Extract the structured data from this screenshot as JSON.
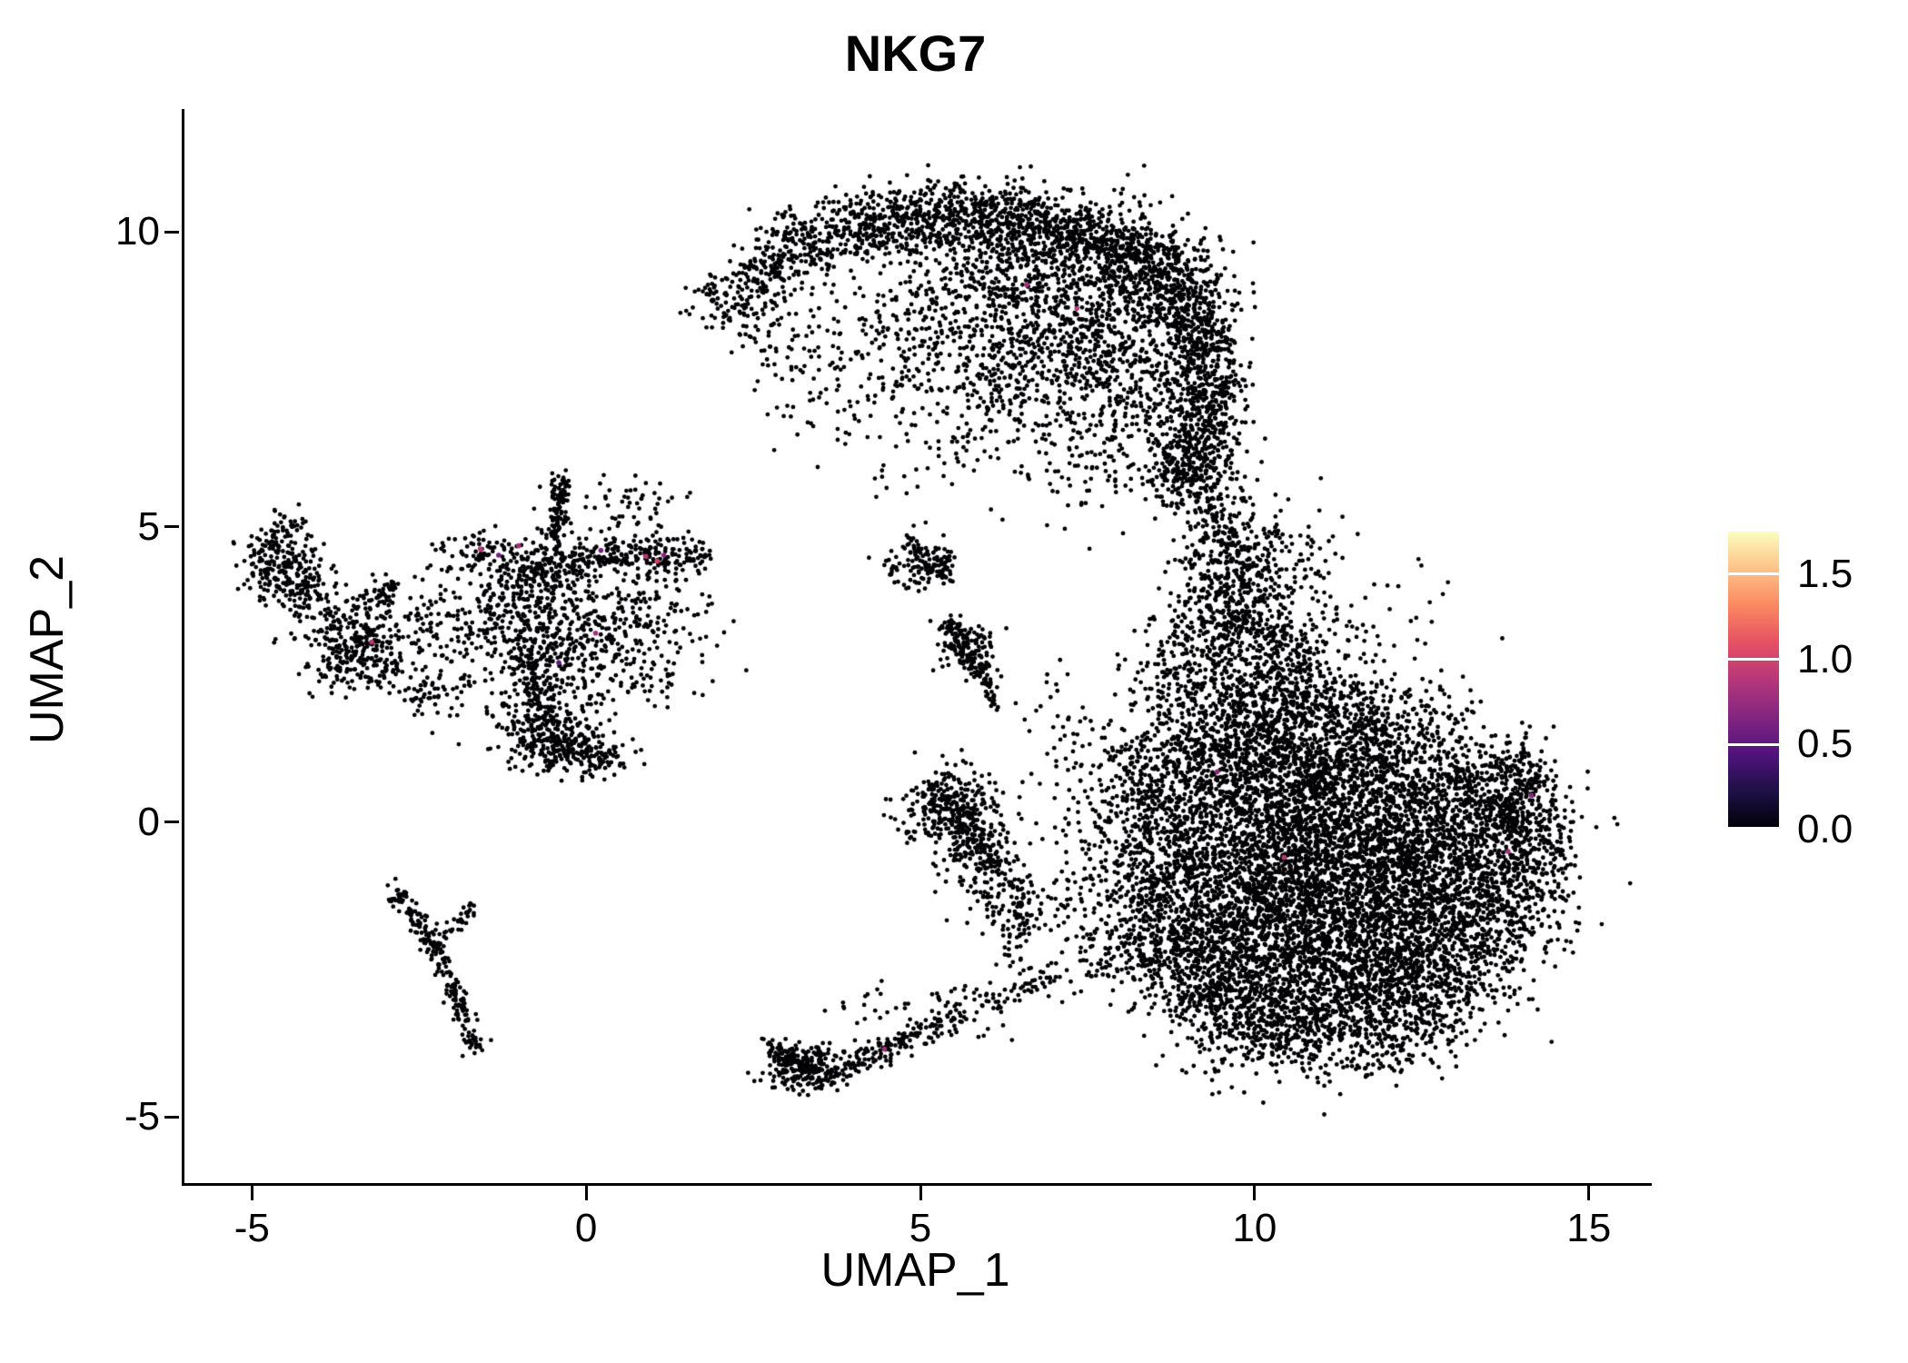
{
  "chart_data": {
    "type": "scatter",
    "title": "NKG7",
    "xlabel": "UMAP_1",
    "ylabel": "UMAP_2",
    "xlim": [
      -6.05,
      15.9
    ],
    "ylim": [
      -6.12,
      12.08
    ],
    "xticks": [
      -5,
      0,
      5,
      10,
      15
    ],
    "yticks": [
      10,
      5,
      0,
      -5
    ],
    "grid": false,
    "legend_position": "right",
    "point_color": "#000004",
    "colorbar": {
      "range": [
        0,
        1.75
      ],
      "ticks": [
        0,
        0.5,
        1.0,
        1.5
      ],
      "tick_labels": [
        "0.0",
        "0.5",
        "1.0",
        "1.5"
      ],
      "colors": [
        "#000004",
        "#1C1044",
        "#4F127B",
        "#812581",
        "#B5367A",
        "#E55064",
        "#FB8761",
        "#FEC287",
        "#FCFDBF"
      ]
    },
    "clusters": {
      "blobs": [
        [
          2.1,
          8.85,
          0.28,
          0.25,
          90
        ],
        [
          2.7,
          9.35,
          0.3,
          0.28,
          130
        ],
        [
          3.4,
          9.8,
          0.35,
          0.3,
          180
        ],
        [
          4.3,
          10.1,
          0.4,
          0.3,
          220
        ],
        [
          5.3,
          10.25,
          0.45,
          0.3,
          250
        ],
        [
          6.3,
          10.2,
          0.45,
          0.3,
          250
        ],
        [
          7.2,
          10.0,
          0.4,
          0.3,
          230
        ],
        [
          8.0,
          9.7,
          0.4,
          0.3,
          220
        ],
        [
          8.6,
          9.2,
          0.35,
          0.35,
          200
        ],
        [
          9.0,
          8.6,
          0.3,
          0.4,
          190
        ],
        [
          9.25,
          7.9,
          0.28,
          0.45,
          190
        ],
        [
          9.3,
          7.1,
          0.28,
          0.45,
          180
        ],
        [
          9.1,
          6.4,
          0.3,
          0.4,
          170
        ],
        [
          8.9,
          5.9,
          0.3,
          0.3,
          120
        ],
        [
          7.5,
          8.6,
          1.0,
          0.9,
          800
        ],
        [
          6.3,
          9.3,
          0.8,
          0.5,
          300
        ],
        [
          6.5,
          7.6,
          0.8,
          0.7,
          260
        ],
        [
          8.3,
          7.4,
          0.5,
          0.8,
          220
        ],
        [
          5.2,
          8.6,
          0.7,
          0.6,
          160
        ],
        [
          4.4,
          8.0,
          0.8,
          0.7,
          120
        ],
        [
          3.3,
          7.6,
          0.5,
          0.6,
          45
        ],
        [
          5.6,
          6.7,
          0.9,
          0.6,
          70
        ],
        [
          7.5,
          6.2,
          0.6,
          0.5,
          90
        ],
        [
          4.7,
          5.9,
          0.5,
          0.4,
          18
        ],
        [
          2.6,
          8.3,
          0.3,
          0.3,
          30
        ],
        [
          9.3,
          5.4,
          0.3,
          0.4,
          110
        ],
        [
          9.55,
          4.6,
          0.35,
          0.4,
          150
        ],
        [
          9.8,
          3.8,
          0.45,
          0.45,
          220
        ],
        [
          10.0,
          3.0,
          0.5,
          0.45,
          260
        ],
        [
          9.2,
          3.3,
          0.35,
          0.6,
          120
        ],
        [
          10.4,
          4.6,
          0.5,
          0.45,
          70
        ],
        [
          11.3,
          3.1,
          0.8,
          0.7,
          80
        ],
        [
          8.8,
          2.4,
          0.4,
          0.5,
          130
        ],
        [
          10.1,
          1.9,
          0.7,
          0.5,
          380
        ],
        [
          9.4,
          1.0,
          0.6,
          0.7,
          380
        ],
        [
          8.6,
          0.9,
          0.4,
          0.5,
          180
        ],
        [
          10.5,
          0.9,
          0.8,
          0.6,
          480
        ],
        [
          11.6,
          1.0,
          0.8,
          0.55,
          420
        ],
        [
          12.6,
          0.6,
          0.7,
          0.5,
          320
        ],
        [
          13.5,
          0.3,
          0.5,
          0.45,
          240
        ],
        [
          14.05,
          0.1,
          0.3,
          0.45,
          150
        ],
        [
          9.8,
          -0.2,
          0.8,
          0.7,
          550
        ],
        [
          11.0,
          -0.3,
          0.9,
          0.7,
          700
        ],
        [
          12.2,
          -0.5,
          0.9,
          0.7,
          600
        ],
        [
          13.2,
          -0.8,
          0.7,
          0.6,
          400
        ],
        [
          10.3,
          -1.4,
          0.9,
          0.7,
          650
        ],
        [
          11.5,
          -1.6,
          0.9,
          0.7,
          650
        ],
        [
          12.6,
          -1.8,
          0.8,
          0.6,
          450
        ],
        [
          9.4,
          -1.8,
          0.6,
          0.7,
          300
        ],
        [
          10.6,
          -2.6,
          0.9,
          0.6,
          500
        ],
        [
          11.8,
          -2.7,
          0.8,
          0.55,
          400
        ],
        [
          12.8,
          -2.7,
          0.6,
          0.5,
          220
        ],
        [
          9.6,
          -3.0,
          0.6,
          0.5,
          250
        ],
        [
          10.3,
          -3.6,
          0.6,
          0.4,
          220
        ],
        [
          11.3,
          -3.6,
          0.6,
          0.35,
          180
        ],
        [
          12.2,
          -3.5,
          0.5,
          0.35,
          120
        ],
        [
          8.9,
          -2.4,
          0.45,
          0.6,
          160
        ],
        [
          8.4,
          -1.5,
          0.4,
          0.6,
          120
        ],
        [
          8.3,
          -0.3,
          0.4,
          0.7,
          130
        ],
        [
          8.9,
          -0.9,
          0.5,
          0.8,
          250
        ],
        [
          13.8,
          -1.4,
          0.4,
          0.5,
          130
        ],
        [
          14.25,
          -0.5,
          0.25,
          0.5,
          80
        ],
        [
          13.9,
          0.9,
          0.3,
          0.3,
          60
        ],
        [
          12.0,
          1.7,
          0.6,
          0.35,
          140
        ],
        [
          10.9,
          2.2,
          0.5,
          0.4,
          130
        ],
        [
          7.8,
          0.3,
          0.5,
          0.7,
          90
        ],
        [
          7.4,
          -0.9,
          0.6,
          0.6,
          80
        ],
        [
          7.9,
          -1.9,
          0.5,
          0.45,
          90
        ],
        [
          7.1,
          1.6,
          0.5,
          0.5,
          45
        ],
        [
          5.6,
          0.0,
          0.3,
          0.4,
          280
        ],
        [
          5.9,
          -0.7,
          0.25,
          0.35,
          110
        ],
        [
          5.25,
          0.45,
          0.2,
          0.2,
          60
        ],
        [
          6.3,
          -1.4,
          0.3,
          0.4,
          70
        ],
        [
          4.9,
          0.1,
          0.25,
          0.3,
          40
        ],
        [
          5.15,
          4.4,
          0.2,
          0.2,
          40
        ],
        [
          4.6,
          4.35,
          0.15,
          0.15,
          25
        ],
        [
          5.7,
          2.95,
          0.22,
          0.25,
          70
        ],
        [
          -4.6,
          4.45,
          0.3,
          0.3,
          170
        ],
        [
          -4.85,
          4.2,
          0.15,
          0.2,
          40
        ],
        [
          -4.35,
          3.95,
          0.2,
          0.2,
          50
        ],
        [
          -4.5,
          5.0,
          0.15,
          0.15,
          20
        ],
        [
          -3.55,
          3.1,
          0.4,
          0.38,
          260
        ],
        [
          -3.15,
          2.75,
          0.25,
          0.3,
          70
        ],
        [
          -3.85,
          2.65,
          0.2,
          0.2,
          30
        ],
        [
          -4.0,
          3.9,
          0.3,
          0.3,
          25
        ],
        [
          -0.65,
          4.3,
          0.3,
          0.28,
          160
        ],
        [
          1.15,
          4.5,
          0.3,
          0.22,
          90
        ],
        [
          0.2,
          5.1,
          0.45,
          0.35,
          55
        ],
        [
          0.8,
          5.5,
          0.3,
          0.2,
          18
        ],
        [
          -1.5,
          4.55,
          0.3,
          0.25,
          60
        ],
        [
          -1.1,
          3.9,
          0.35,
          0.35,
          70
        ],
        [
          -1.6,
          3.3,
          0.35,
          0.4,
          90
        ],
        [
          -0.8,
          3.3,
          0.45,
          0.45,
          160
        ],
        [
          0.0,
          3.4,
          0.45,
          0.45,
          120
        ],
        [
          0.7,
          3.7,
          0.35,
          0.35,
          60
        ],
        [
          1.3,
          3.3,
          0.3,
          0.4,
          25
        ],
        [
          0.4,
          2.7,
          0.4,
          0.4,
          70
        ],
        [
          -0.3,
          2.6,
          0.35,
          0.35,
          90
        ],
        [
          -0.5,
          1.35,
          0.4,
          0.25,
          260
        ],
        [
          0.15,
          1.1,
          0.3,
          0.18,
          90
        ],
        [
          -1.15,
          1.9,
          0.3,
          0.3,
          45
        ],
        [
          -2.1,
          2.4,
          0.3,
          0.35,
          40
        ],
        [
          -2.5,
          2.1,
          0.2,
          0.25,
          25
        ],
        [
          1.0,
          2.3,
          0.3,
          0.35,
          30
        ],
        [
          1.8,
          3.2,
          0.3,
          0.5,
          15
        ],
        [
          -2.0,
          4.4,
          0.3,
          0.3,
          30
        ],
        [
          -2.55,
          3.4,
          0.25,
          0.3,
          40
        ],
        [
          -1.72,
          -3.72,
          0.08,
          0.1,
          20
        ],
        [
          -2.82,
          -1.28,
          0.1,
          0.1,
          25
        ],
        [
          3.15,
          -4.15,
          0.3,
          0.22,
          160
        ],
        [
          5.6,
          -3.2,
          0.25,
          0.2,
          40
        ],
        [
          4.3,
          -3.05,
          0.4,
          0.25,
          20
        ],
        [
          2.68,
          -3.8,
          0.1,
          0.1,
          12
        ]
      ],
      "lines": [
        [
          6.35,
          -2.5,
          6.5,
          -1.0,
          0.08,
          50
        ],
        [
          4.75,
          4.8,
          5.35,
          4.05,
          0.07,
          45
        ],
        [
          4.8,
          4.0,
          5.5,
          4.6,
          0.07,
          40
        ],
        [
          5.35,
          3.4,
          5.95,
          2.4,
          0.09,
          120
        ],
        [
          5.95,
          2.3,
          6.1,
          1.9,
          0.05,
          18
        ],
        [
          -3.3,
          3.6,
          -2.95,
          4.1,
          0.09,
          45
        ],
        [
          -0.5,
          4.65,
          -0.42,
          5.9,
          0.07,
          110
        ],
        [
          -0.3,
          4.35,
          0.9,
          4.55,
          0.12,
          110
        ],
        [
          1.45,
          4.5,
          1.8,
          4.6,
          0.06,
          18
        ],
        [
          -1.0,
          2.9,
          -0.6,
          1.7,
          0.13,
          130
        ],
        [
          -2.75,
          -1.35,
          -2.15,
          -2.5,
          0.08,
          90
        ],
        [
          -2.15,
          -2.5,
          -1.75,
          -3.6,
          0.07,
          75
        ],
        [
          -2.5,
          -2.05,
          -1.7,
          -1.5,
          0.08,
          50
        ],
        [
          2.85,
          -3.95,
          3.6,
          -4.35,
          0.1,
          90
        ],
        [
          3.6,
          -4.25,
          4.7,
          -3.7,
          0.13,
          110
        ],
        [
          4.7,
          -3.7,
          5.5,
          -3.3,
          0.13,
          60
        ],
        [
          5.8,
          -3.1,
          7.0,
          -2.6,
          0.15,
          55
        ],
        [
          7.0,
          -2.6,
          8.4,
          -2.3,
          0.18,
          45
        ]
      ]
    },
    "expressing_cells": [
      {
        "x": -1.62,
        "y": 4.62,
        "v": 0.9
      },
      {
        "x": -1.35,
        "y": 4.52,
        "v": 0.6
      },
      {
        "x": -1.05,
        "y": 4.68,
        "v": 0.8
      },
      {
        "x": 0.85,
        "y": 4.5,
        "v": 0.9
      },
      {
        "x": 1.02,
        "y": 4.42,
        "v": 1.0
      },
      {
        "x": 1.12,
        "y": 4.52,
        "v": 0.7
      },
      {
        "x": 0.18,
        "y": 4.6,
        "v": 0.6
      },
      {
        "x": -3.25,
        "y": 3.05,
        "v": 0.9
      },
      {
        "x": 0.1,
        "y": 3.2,
        "v": 0.8
      },
      {
        "x": -0.45,
        "y": 2.7,
        "v": 0.5
      },
      {
        "x": 6.55,
        "y": 9.1,
        "v": 0.8
      },
      {
        "x": 7.3,
        "y": 8.7,
        "v": 0.9
      },
      {
        "x": 9.4,
        "y": 0.85,
        "v": 0.7
      },
      {
        "x": 10.4,
        "y": -0.6,
        "v": 0.9
      },
      {
        "x": 13.75,
        "y": -0.5,
        "v": 0.8
      },
      {
        "x": 14.1,
        "y": 0.45,
        "v": 0.7
      },
      {
        "x": 4.42,
        "y": -3.85,
        "v": 0.8
      }
    ]
  }
}
